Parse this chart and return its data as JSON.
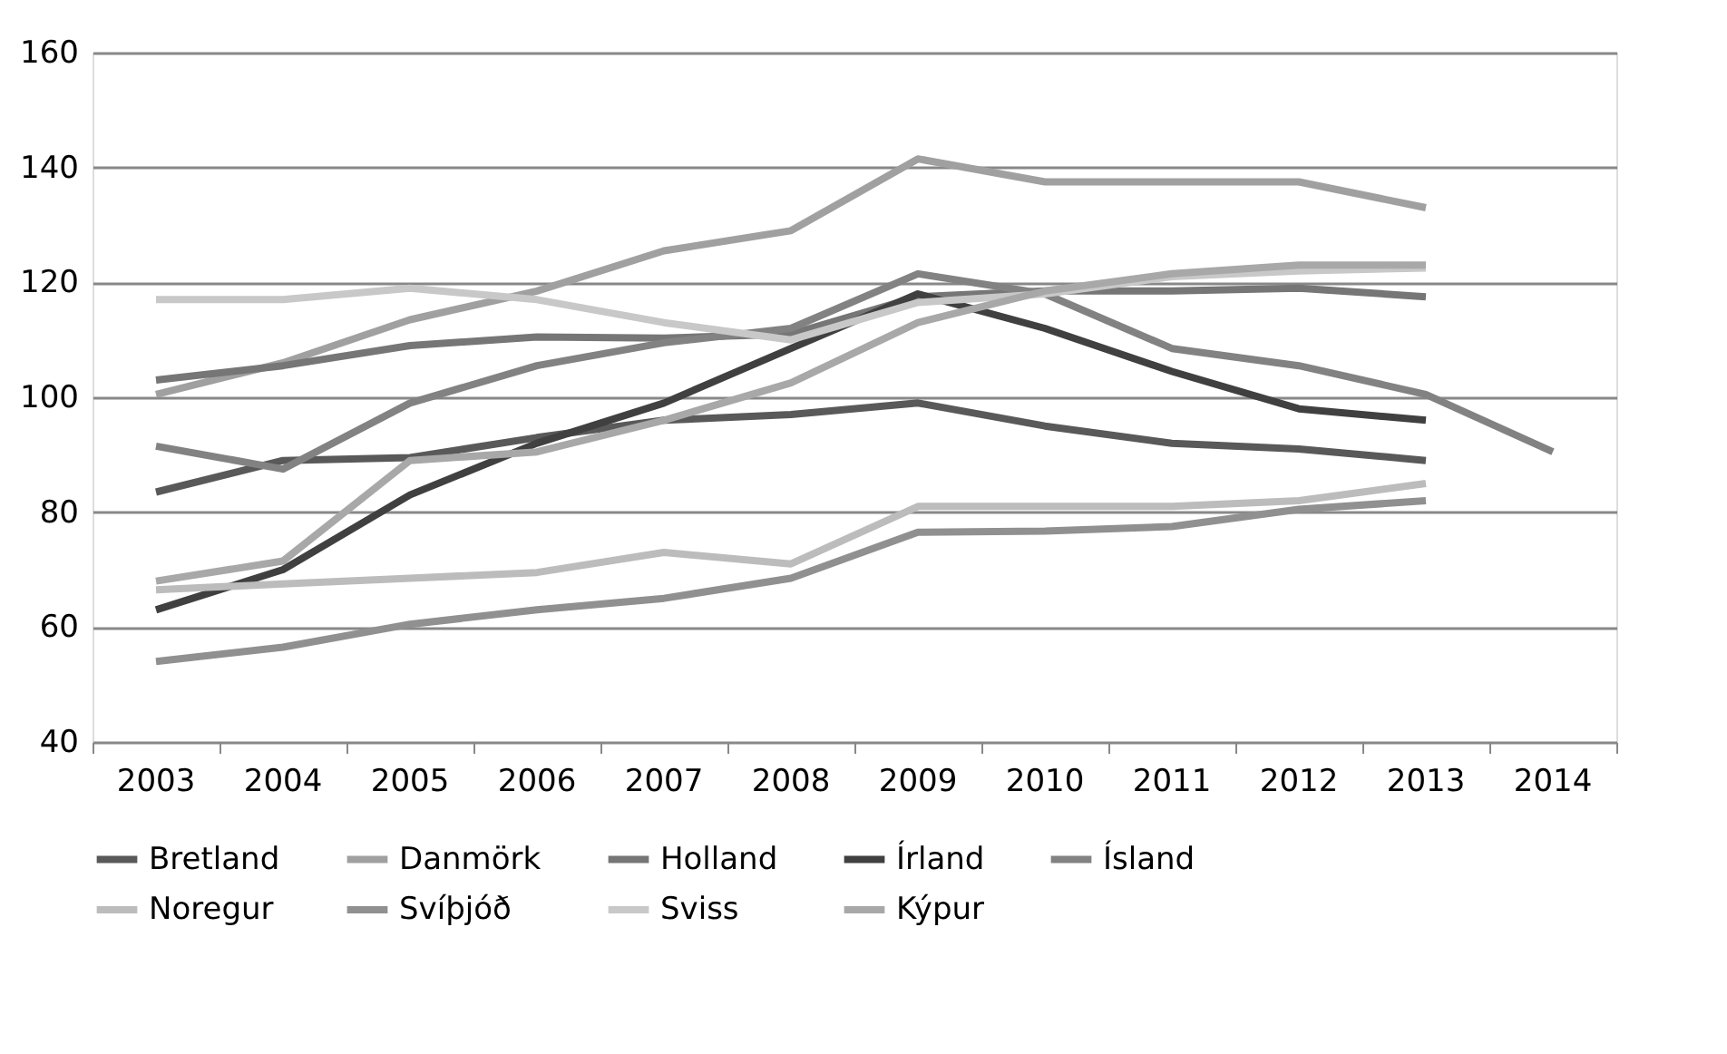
{
  "chart_data": {
    "type": "line",
    "categories": [
      "2003",
      "2004",
      "2005",
      "2006",
      "2007",
      "2008",
      "2009",
      "2010",
      "2011",
      "2012",
      "2013",
      "2014"
    ],
    "ylim": [
      40,
      160
    ],
    "yticks": [
      40,
      60,
      80,
      100,
      120,
      140,
      160
    ],
    "grid": "y",
    "legend": "bottom",
    "line_style": "solid",
    "marker": "none",
    "series": [
      {
        "name": "Bretland",
        "color": "#595959",
        "values": [
          83.5,
          89,
          89.5,
          93,
          96,
          97,
          99,
          95,
          92,
          91,
          89,
          null
        ]
      },
      {
        "name": "Danmörk",
        "color": "#a0a0a0",
        "values": [
          100.5,
          106,
          113.5,
          118.5,
          125.5,
          129,
          141.5,
          137.5,
          137.5,
          137.5,
          133,
          null
        ]
      },
      {
        "name": "Holland",
        "color": "#767676",
        "values": [
          103,
          105.5,
          109,
          110.5,
          110.3,
          111,
          117.5,
          118.5,
          118.5,
          119,
          117.5,
          null
        ]
      },
      {
        "name": "Írland",
        "color": "#404040",
        "values": [
          63,
          70,
          83,
          92,
          99,
          108.5,
          118,
          112,
          104.5,
          98,
          96,
          null
        ]
      },
      {
        "name": "Ísland",
        "color": "#828282",
        "values": [
          91.5,
          87.5,
          99,
          105.5,
          109.5,
          112,
          121.5,
          118,
          108.5,
          105.5,
          100.5,
          90.5
        ]
      },
      {
        "name": "Noregur",
        "color": "#bcbcbc",
        "values": [
          66.5,
          67.5,
          68.5,
          69.5,
          73,
          71,
          81,
          81,
          81,
          82,
          85,
          null
        ]
      },
      {
        "name": "Svíþjóð",
        "color": "#909090",
        "values": [
          54,
          56.5,
          60.5,
          63,
          65,
          68.5,
          76.5,
          76.7,
          77.5,
          80.5,
          82,
          null
        ]
      },
      {
        "name": "Sviss",
        "color": "#c8c8c8",
        "values": [
          117,
          117,
          119,
          117,
          113,
          110,
          116.5,
          118,
          121,
          122,
          122.5,
          null
        ]
      },
      {
        "name": "Kýpur",
        "color": "#a8a8a8",
        "values": [
          68,
          71.5,
          89,
          90.5,
          96,
          102.5,
          113,
          118.5,
          121.5,
          123,
          123,
          null
        ]
      }
    ]
  }
}
